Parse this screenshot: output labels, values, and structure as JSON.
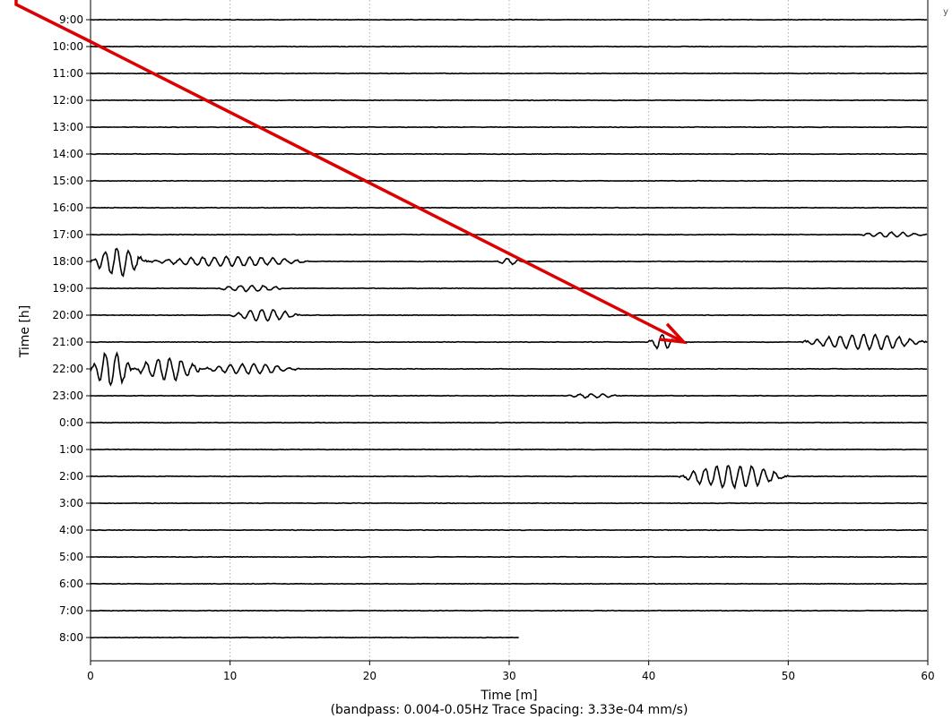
{
  "chart_data": {
    "type": "line",
    "subtype": "helicorder",
    "xlabel": "Time [m]",
    "ylabel": "Time [h]",
    "subtitle": "(bandpass: 0.004-0.05Hz  Trace Spacing: 3.33e-04 mm/s)",
    "xlim": [
      0,
      60
    ],
    "x_ticks": [
      0,
      10,
      20,
      30,
      40,
      50,
      60
    ],
    "grid": "vertical dotted lines at x ticks",
    "edge_text": "y",
    "series_color": "#000000",
    "rows": [
      {
        "label": "9:00",
        "events": []
      },
      {
        "label": "10:00",
        "events": []
      },
      {
        "label": "11:00",
        "events": []
      },
      {
        "label": "12:00",
        "events": []
      },
      {
        "label": "13:00",
        "events": []
      },
      {
        "label": "14:00",
        "events": []
      },
      {
        "label": "15:00",
        "events": []
      },
      {
        "label": "16:00",
        "events": []
      },
      {
        "label": "17:00",
        "events": [
          {
            "start": 55,
            "end": 60,
            "amp": 0.1
          }
        ]
      },
      {
        "label": "18:00",
        "events": [
          {
            "start": 0,
            "end": 4,
            "amp": 0.55
          },
          {
            "start": 4,
            "end": 16,
            "amp": 0.18
          },
          {
            "start": 29,
            "end": 31,
            "amp": 0.12
          }
        ]
      },
      {
        "label": "19:00",
        "events": [
          {
            "start": 9,
            "end": 14,
            "amp": 0.12
          }
        ]
      },
      {
        "label": "20:00",
        "events": [
          {
            "start": 10,
            "end": 15,
            "amp": 0.22
          }
        ]
      },
      {
        "label": "21:00",
        "events": [
          {
            "start": 40,
            "end": 42,
            "amp": 0.3
          },
          {
            "start": 51,
            "end": 60,
            "amp": 0.3
          }
        ]
      },
      {
        "label": "22:00",
        "events": [
          {
            "start": 0,
            "end": 3,
            "amp": 0.7
          },
          {
            "start": 3,
            "end": 8,
            "amp": 0.45
          },
          {
            "start": 8,
            "end": 15,
            "amp": 0.2
          }
        ]
      },
      {
        "label": "23:00",
        "events": [
          {
            "start": 34,
            "end": 38,
            "amp": 0.08
          }
        ]
      },
      {
        "label": "0:00",
        "events": []
      },
      {
        "label": "1:00",
        "events": []
      },
      {
        "label": "2:00",
        "events": [
          {
            "start": 42,
            "end": 50,
            "amp": 0.45
          }
        ]
      },
      {
        "label": "3:00",
        "events": []
      },
      {
        "label": "4:00",
        "events": []
      },
      {
        "label": "5:00",
        "events": []
      },
      {
        "label": "6:00",
        "events": []
      },
      {
        "label": "7:00",
        "events": []
      },
      {
        "label": "8:00",
        "events": [],
        "end": 30.7
      }
    ],
    "annotation": {
      "type": "arrow",
      "color": "#dd0000",
      "points_to": {
        "row": "21:00",
        "x": 42.5
      }
    }
  }
}
